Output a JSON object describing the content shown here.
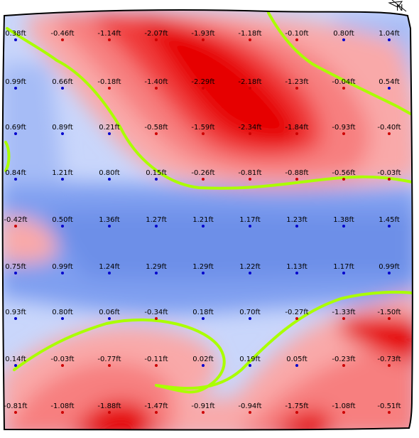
{
  "map": {
    "compass_label": "N",
    "unit": "ft",
    "colors": {
      "deep_cut": "#e60000",
      "cut": "#f03a3a",
      "cut_mid": "#f77f7f",
      "cut_light": "#f9a9a9",
      "cut_pale": "#f9cccc",
      "fill_pale": "#c9d6fb",
      "fill_light": "#a6bcf6",
      "fill": "#7f9ff0",
      "fill_strong": "#6d8fe8",
      "zero_line": "#aaff00",
      "point_positive": "#0000cc",
      "point_negative": "#cc0000"
    },
    "grid": [
      [
        "0.38",
        "-0.46",
        "-1.14",
        "-2.07",
        "-1.93",
        "-1.18",
        "-0.10",
        "0.80",
        "1.04"
      ],
      [
        "0.99",
        "0.66",
        "-0.18",
        "-1.40",
        "-2.29",
        "-2.18",
        "-1.23",
        "-0.04",
        "0.54"
      ],
      [
        "0.69",
        "0.89",
        "0.21",
        "-0.58",
        "-1.59",
        "-2.34",
        "-1.84",
        "-0.93",
        "-0.40"
      ],
      [
        "0.84",
        "1.21",
        "0.80",
        "0.15",
        "-0.26",
        "-0.81",
        "-0.88",
        "-0.56",
        "-0.03"
      ],
      [
        "-0.42",
        "0.50",
        "1.36",
        "1.27",
        "1.21",
        "1.17",
        "1.23",
        "1.38",
        "1.45"
      ],
      [
        "0.75",
        "0.99",
        "1.24",
        "1.29",
        "1.29",
        "1.22",
        "1.13",
        "1.17",
        "0.99"
      ],
      [
        "0.93",
        "0.80",
        "0.06",
        "-0.34",
        "0.18",
        "0.70",
        "-0.27",
        "-1.33",
        "-1.50"
      ],
      [
        "0.14",
        "-0.03",
        "-0.77",
        "-0.11",
        "0.02",
        "0.19",
        "0.05",
        "-0.23",
        "-0.73"
      ],
      [
        "-0.81",
        "-1.08",
        "-1.88",
        "-1.47",
        "-0.91",
        "-0.94",
        "-1.75",
        "-1.08",
        "-0.51"
      ]
    ]
  }
}
